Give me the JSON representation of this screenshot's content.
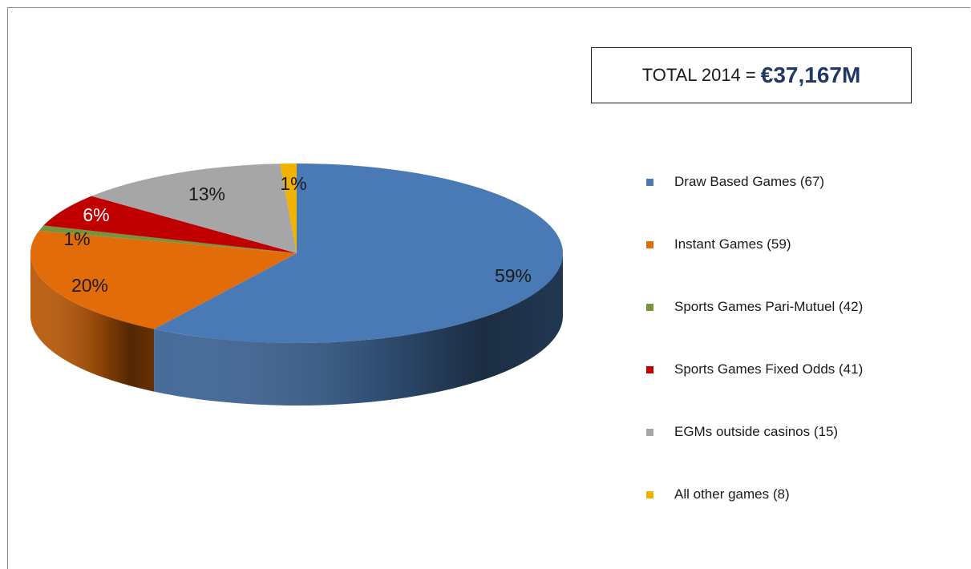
{
  "total": {
    "label": "TOTAL 2014 =",
    "value": "€37,167M"
  },
  "chart_data": {
    "type": "pie",
    "style": "3d",
    "title": "",
    "legend_position": "right",
    "slices": [
      {
        "name": "Draw Based Games (67)",
        "value": 59,
        "label": "59%",
        "color": "#4a7ab5",
        "text_color": "#1a1a1a"
      },
      {
        "name": "Instant Games (59)",
        "value": 20,
        "label": "20%",
        "color": "#e36c0a",
        "text_color": "#1a1a1a"
      },
      {
        "name": "Sports Games Pari-Mutuel (42)",
        "value": 1,
        "label": "1%",
        "color": "#77933c",
        "text_color": "#1a1a1a"
      },
      {
        "name": "Sports Games Fixed Odds (41)",
        "value": 6,
        "label": "6%",
        "color": "#c00000",
        "text_color": "#ffffff"
      },
      {
        "name": "EGMs outside casinos (15)",
        "value": 13,
        "label": "13%",
        "color": "#a6a6a6",
        "text_color": "#1a1a1a"
      },
      {
        "name": "All other games (8)",
        "value": 1,
        "label": "1%",
        "color": "#f0b400",
        "text_color": "#1a1a1a"
      }
    ]
  }
}
